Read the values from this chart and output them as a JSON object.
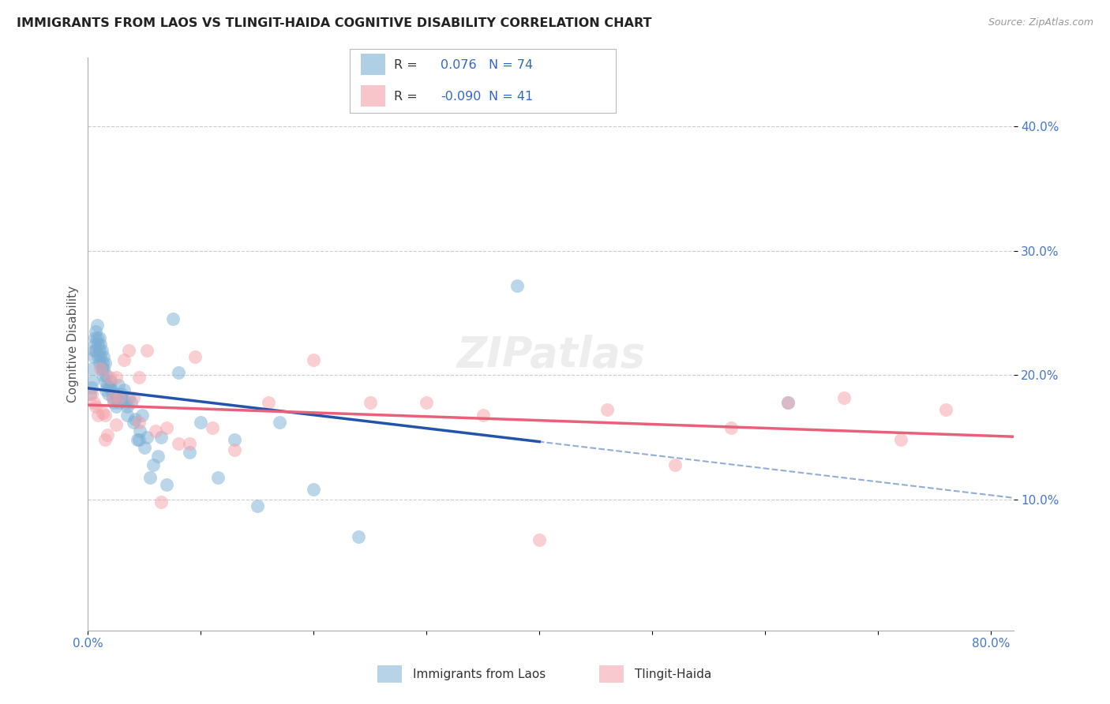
{
  "title": "IMMIGRANTS FROM LAOS VS TLINGIT-HAIDA COGNITIVE DISABILITY CORRELATION CHART",
  "source": "Source: ZipAtlas.com",
  "ylabel": "Cognitive Disability",
  "legend1_label": "Immigrants from Laos",
  "legend2_label": "Tlingit-Haida",
  "r1": 0.076,
  "n1": 74,
  "r2": -0.09,
  "n2": 41,
  "blue_color": "#7BAFD4",
  "pink_color": "#F4A0A8",
  "blue_line_color": "#2255AA",
  "pink_line_color": "#E8607A",
  "blue_dashed_color": "#7799CC",
  "xlim": [
    0.0,
    0.82
  ],
  "ylim": [
    -0.005,
    0.455
  ],
  "blue_points_x": [
    0.002,
    0.003,
    0.004,
    0.004,
    0.005,
    0.005,
    0.006,
    0.006,
    0.007,
    0.007,
    0.008,
    0.008,
    0.009,
    0.009,
    0.01,
    0.01,
    0.01,
    0.011,
    0.011,
    0.012,
    0.012,
    0.013,
    0.013,
    0.014,
    0.014,
    0.015,
    0.015,
    0.016,
    0.016,
    0.017,
    0.018,
    0.019,
    0.02,
    0.021,
    0.022,
    0.023,
    0.024,
    0.025,
    0.026,
    0.027,
    0.028,
    0.03,
    0.031,
    0.032,
    0.033,
    0.035,
    0.036,
    0.038,
    0.04,
    0.042,
    0.044,
    0.046,
    0.048,
    0.05,
    0.052,
    0.055,
    0.058,
    0.062,
    0.065,
    0.07,
    0.075,
    0.08,
    0.09,
    0.1,
    0.115,
    0.13,
    0.15,
    0.17,
    0.2,
    0.24,
    0.38,
    0.62,
    0.035,
    0.045
  ],
  "blue_points_y": [
    0.185,
    0.19,
    0.195,
    0.205,
    0.22,
    0.215,
    0.23,
    0.225,
    0.235,
    0.22,
    0.23,
    0.24,
    0.225,
    0.215,
    0.23,
    0.22,
    0.21,
    0.225,
    0.215,
    0.22,
    0.205,
    0.21,
    0.2,
    0.215,
    0.205,
    0.21,
    0.195,
    0.2,
    0.188,
    0.192,
    0.185,
    0.19,
    0.195,
    0.188,
    0.182,
    0.178,
    0.185,
    0.175,
    0.18,
    0.192,
    0.178,
    0.185,
    0.18,
    0.188,
    0.178,
    0.168,
    0.182,
    0.178,
    0.162,
    0.165,
    0.148,
    0.155,
    0.168,
    0.142,
    0.15,
    0.118,
    0.128,
    0.135,
    0.15,
    0.112,
    0.245,
    0.202,
    0.138,
    0.162,
    0.118,
    0.148,
    0.095,
    0.162,
    0.108,
    0.07,
    0.272,
    0.178,
    0.175,
    0.148
  ],
  "pink_points_x": [
    0.003,
    0.005,
    0.007,
    0.009,
    0.011,
    0.013,
    0.015,
    0.017,
    0.019,
    0.022,
    0.025,
    0.028,
    0.032,
    0.036,
    0.04,
    0.045,
    0.052,
    0.06,
    0.07,
    0.08,
    0.095,
    0.11,
    0.13,
    0.16,
    0.2,
    0.25,
    0.3,
    0.35,
    0.4,
    0.46,
    0.52,
    0.57,
    0.62,
    0.67,
    0.72,
    0.76,
    0.015,
    0.025,
    0.045,
    0.065,
    0.09
  ],
  "pink_points_y": [
    0.185,
    0.178,
    0.175,
    0.168,
    0.205,
    0.17,
    0.168,
    0.152,
    0.198,
    0.182,
    0.198,
    0.182,
    0.212,
    0.22,
    0.182,
    0.198,
    0.22,
    0.155,
    0.158,
    0.145,
    0.215,
    0.158,
    0.14,
    0.178,
    0.212,
    0.178,
    0.178,
    0.168,
    0.068,
    0.172,
    0.128,
    0.158,
    0.178,
    0.182,
    0.148,
    0.172,
    0.148,
    0.16,
    0.162,
    0.098,
    0.145
  ]
}
